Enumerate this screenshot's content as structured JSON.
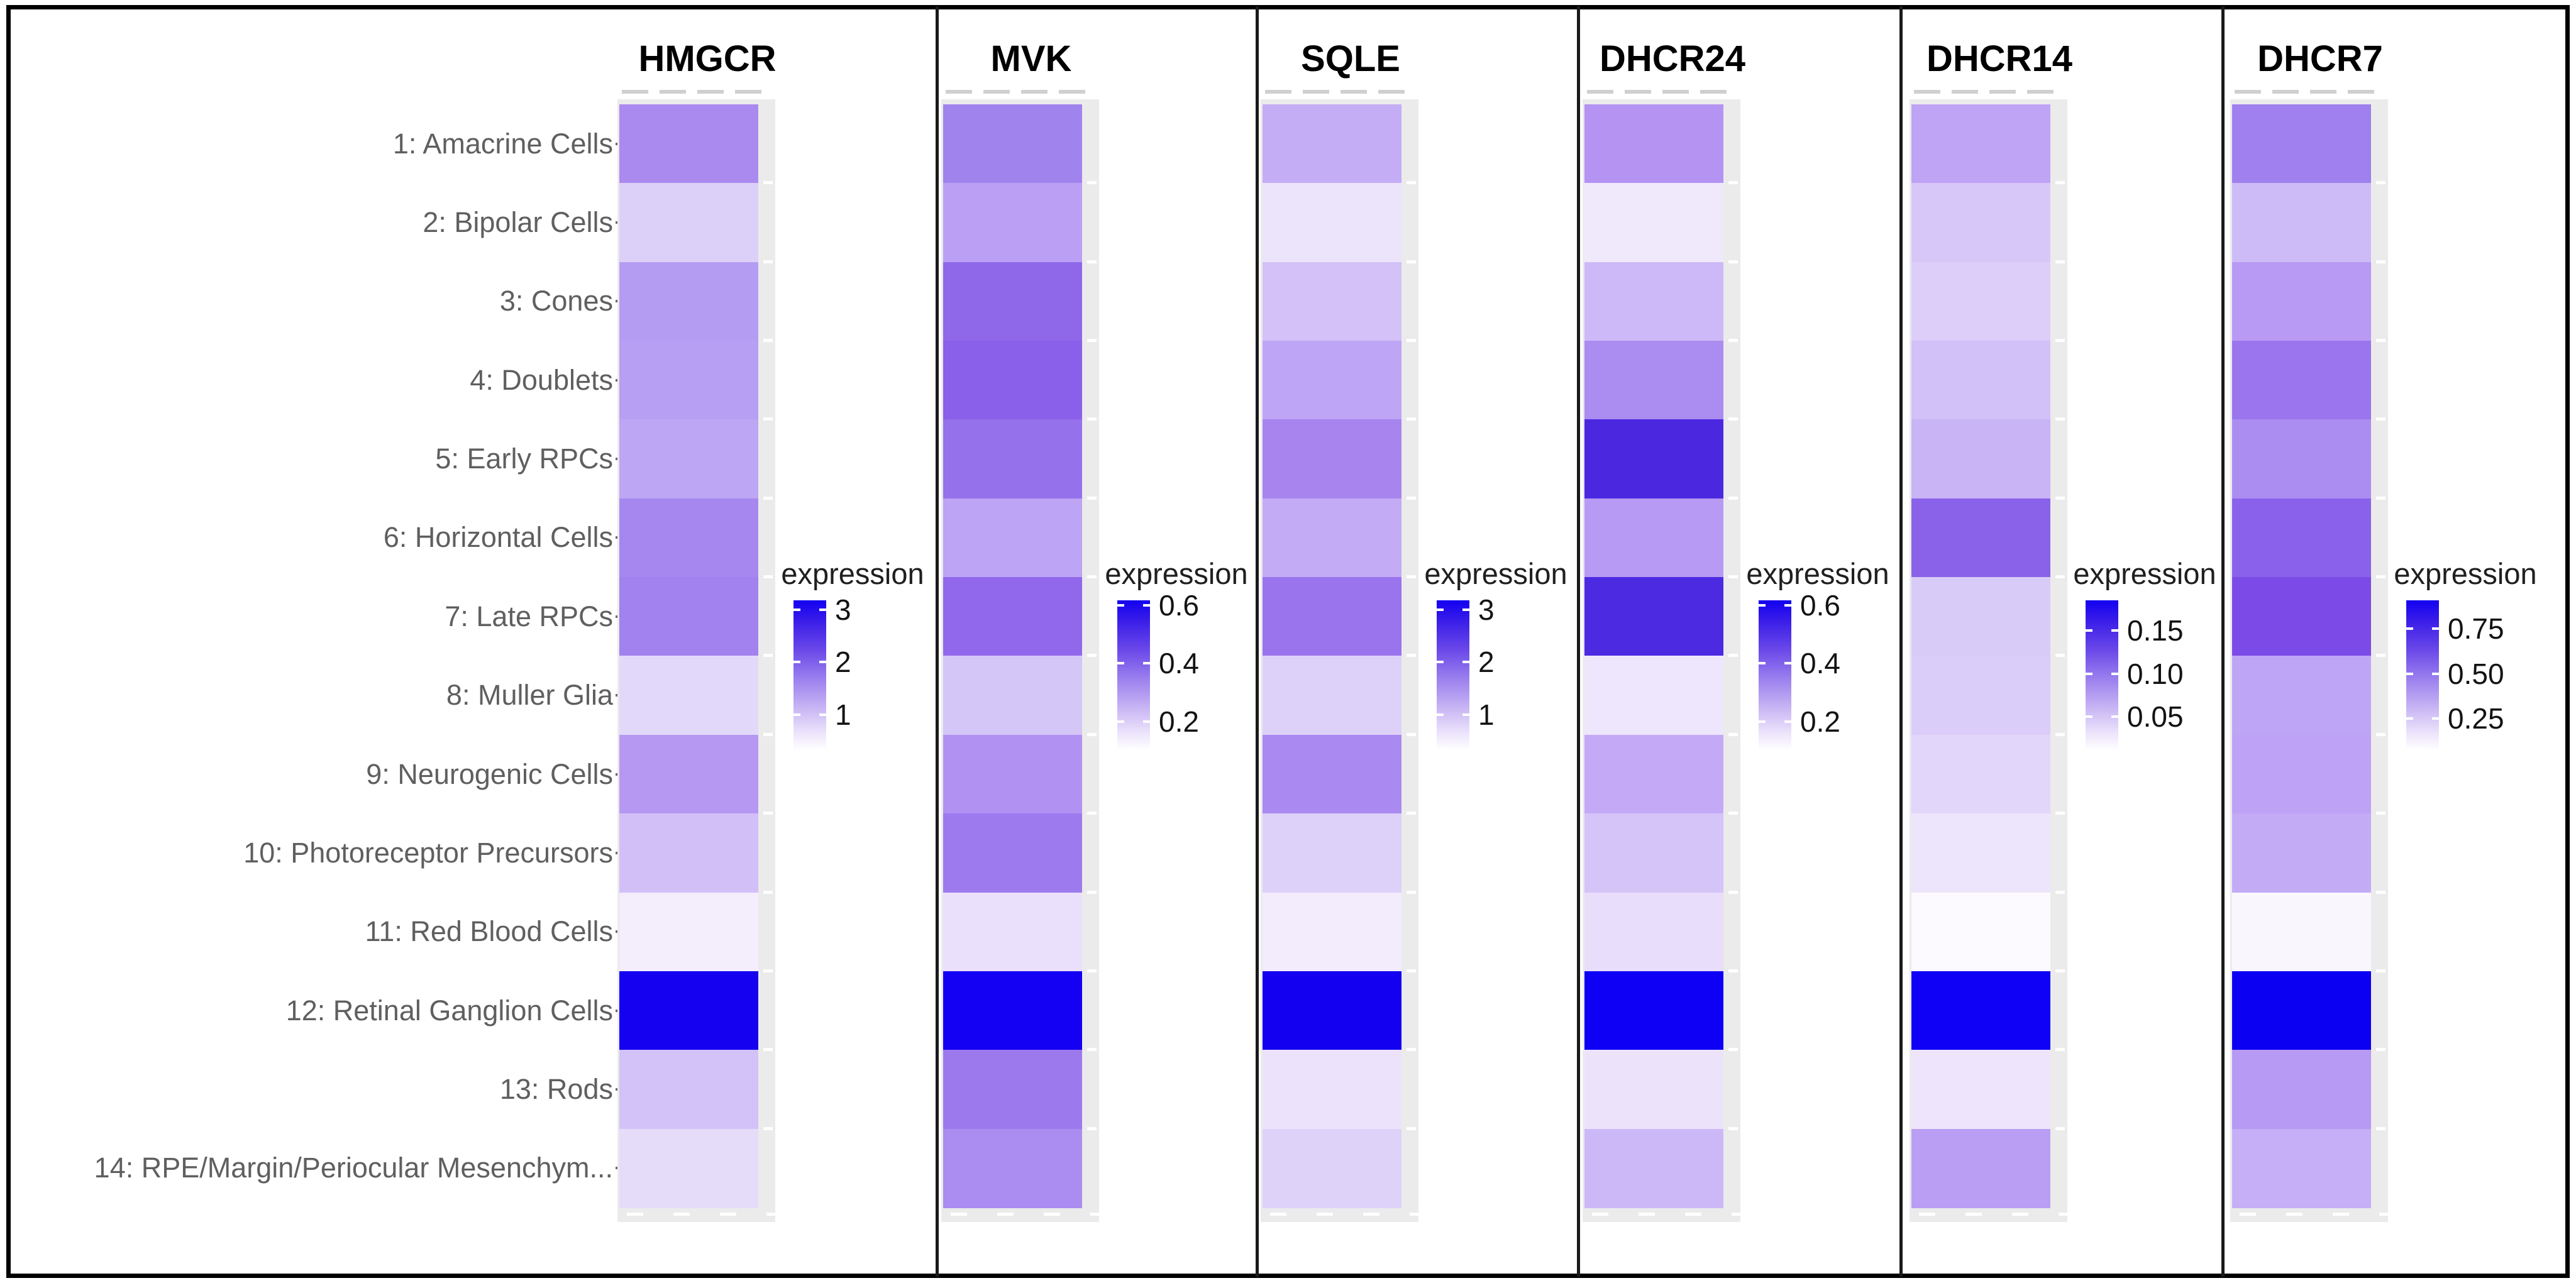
{
  "legend_title": "expression",
  "chart_data": {
    "type": "heatmap",
    "title": "",
    "orientation": "one vertical single-column heatmap strip per gene; shared row axis on the left; individual color legend to the right of each strip",
    "legend_title": "expression",
    "colormap": "white (low) -> purple -> blue (high)",
    "grid": false,
    "categories": [
      "1: Amacrine Cells",
      "2: Bipolar Cells",
      "3: Cones",
      "4: Doublets",
      "5: Early RPCs",
      "6: Horizontal Cells",
      "7: Late RPCs",
      "8: Muller Glia",
      "9: Neurogenic Cells",
      "10: Photoreceptor Precursors",
      "11: Red Blood Cells",
      "12: Retinal Ganglion Cells",
      "13: Rods",
      "14: RPE/Margin/Periocular Mesenchym..."
    ],
    "series": [
      {
        "gene": "HMGCR",
        "legend_ticks": [
          "3",
          "2",
          "1"
        ],
        "scale_range": [
          0,
          3.2
        ],
        "values": [
          1.5,
          0.5,
          1.3,
          1.3,
          1.2,
          1.6,
          1.7,
          0.4,
          1.3,
          0.7,
          0.15,
          3.2,
          0.7,
          0.35
        ],
        "colors": [
          "#ab8af0",
          "#dcd0f8",
          "#b59cf3",
          "#b79ff3",
          "#bda6f4",
          "#a687ef",
          "#a182ee",
          "#e2d9fa",
          "#b698f3",
          "#d2bff7",
          "#f3edfc",
          "#1500f0",
          "#d3c2f7",
          "#e5dcfa"
        ]
      },
      {
        "gene": "MVK",
        "legend_ticks": [
          "0.6",
          "0.4",
          "0.2"
        ],
        "scale_range": [
          0,
          0.65
        ],
        "values": [
          0.33,
          0.22,
          0.4,
          0.42,
          0.38,
          0.21,
          0.39,
          0.13,
          0.26,
          0.35,
          0.06,
          0.65,
          0.35,
          0.3
        ],
        "colors": [
          "#a183ee",
          "#bb9ff4",
          "#8f68ea",
          "#8a5fe9",
          "#9571ec",
          "#bda4f4",
          "#9168eb",
          "#d5c6f8",
          "#b191f2",
          "#9d7aee",
          "#eae0fb",
          "#1400f2",
          "#9d79ee",
          "#ab8cf0"
        ]
      },
      {
        "gene": "SQLE",
        "legend_ticks": [
          "3",
          "2",
          "1"
        ],
        "scale_range": [
          0,
          3.2
        ],
        "values": [
          0.9,
          0.25,
          0.65,
          1.0,
          1.5,
          0.95,
          1.7,
          0.5,
          1.4,
          0.5,
          0.18,
          3.2,
          0.28,
          0.5
        ],
        "colors": [
          "#c5adf6",
          "#ece4fb",
          "#d3c1f7",
          "#bfa5f5",
          "#a884ef",
          "#c3abf5",
          "#9a74ed",
          "#ded1f9",
          "#aa8af1",
          "#ddd0f9",
          "#f3ecfd",
          "#1300f1",
          "#ece2fb",
          "#ded2f9"
        ]
      },
      {
        "gene": "DHCR24",
        "legend_ticks": [
          "0.6",
          "0.4",
          "0.2"
        ],
        "scale_range": [
          0,
          0.65
        ],
        "values": [
          0.22,
          0.04,
          0.13,
          0.25,
          0.52,
          0.2,
          0.52,
          0.05,
          0.16,
          0.12,
          0.07,
          0.65,
          0.06,
          0.13
        ],
        "colors": [
          "#b493f3",
          "#f0e9fc",
          "#cdb9f7",
          "#ab8cf1",
          "#4b28e0",
          "#b79af4",
          "#4c2ae1",
          "#eee6fc",
          "#c4aaf6",
          "#d5c4f8",
          "#e8ddfa",
          "#0d00f4",
          "#ece3fb",
          "#cdb8f7"
        ]
      },
      {
        "gene": "DHCR14",
        "legend_ticks": [
          "0.15",
          "0.10",
          "0.05"
        ],
        "scale_range": [
          0,
          0.18
        ],
        "values": [
          0.055,
          0.04,
          0.035,
          0.045,
          0.05,
          0.12,
          0.04,
          0.038,
          0.03,
          0.02,
          0.003,
          0.18,
          0.02,
          0.065
        ],
        "colors": [
          "#bfa3f5",
          "#d7c7f8",
          "#dccdf9",
          "#d2c0f8",
          "#c9b4f6",
          "#8a62ea",
          "#d9cbf8",
          "#dbcdf9",
          "#e2d6fa",
          "#ede5fb",
          "#fdfaff",
          "#0f00f6",
          "#eee5fc",
          "#b99ef4"
        ]
      },
      {
        "gene": "DHCR7",
        "legend_ticks": [
          "0.75",
          "0.50",
          "0.25"
        ],
        "scale_range": [
          0,
          0.9
        ],
        "values": [
          0.42,
          0.22,
          0.31,
          0.45,
          0.37,
          0.52,
          0.58,
          0.28,
          0.29,
          0.26,
          0.03,
          0.9,
          0.32,
          0.25
        ],
        "colors": [
          "#9f80ee",
          "#cdbbf7",
          "#b899f4",
          "#9a75ed",
          "#ab8df1",
          "#8a61ea",
          "#7b4ae7",
          "#bfa5f5",
          "#bda2f5",
          "#c3abf6",
          "#faf6fe",
          "#0c00f2",
          "#b69af3",
          "#c6aff6"
        ]
      }
    ],
    "accent_high_color": "#1400f0",
    "row_label_color": "#5f5f5f"
  }
}
